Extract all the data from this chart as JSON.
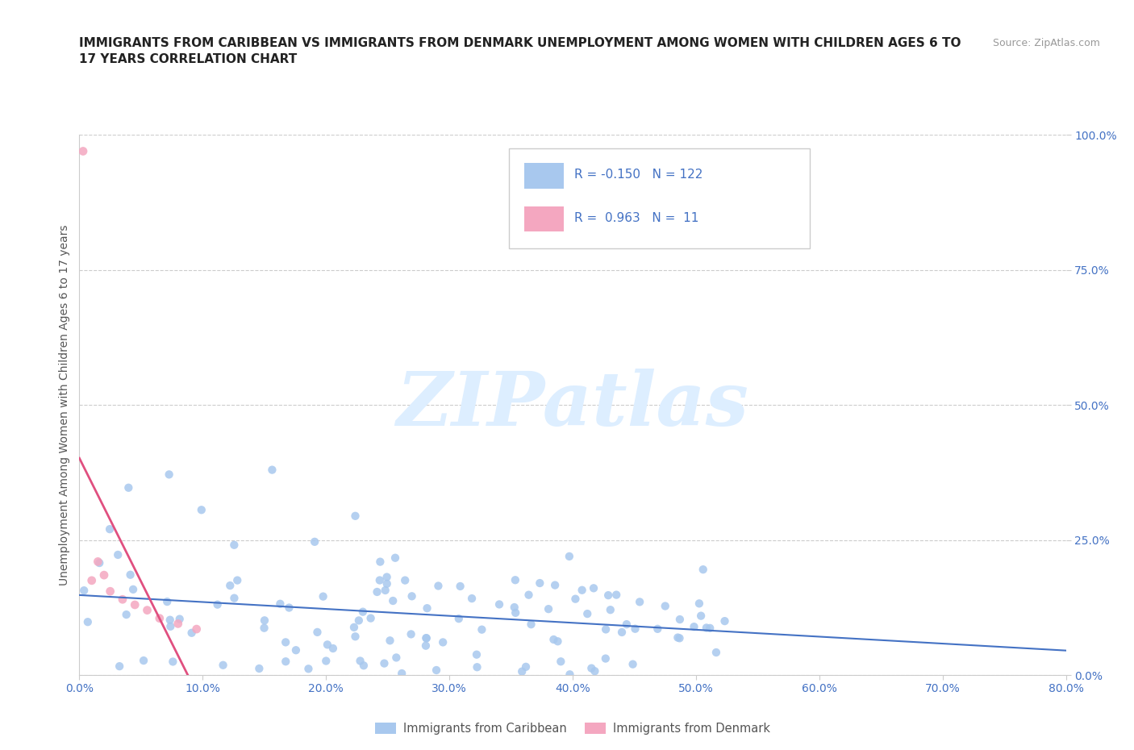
{
  "title_line1": "IMMIGRANTS FROM CARIBBEAN VS IMMIGRANTS FROM DENMARK UNEMPLOYMENT AMONG WOMEN WITH CHILDREN AGES 6 TO",
  "title_line2": "17 YEARS CORRELATION CHART",
  "source_text": "Source: ZipAtlas.com",
  "ylabel": "Unemployment Among Women with Children Ages 6 to 17 years",
  "xlim": [
    0.0,
    0.8
  ],
  "ylim": [
    0.0,
    1.0
  ],
  "xticks": [
    0.0,
    0.1,
    0.2,
    0.3,
    0.4,
    0.5,
    0.6,
    0.7,
    0.8
  ],
  "yticks": [
    0.0,
    0.25,
    0.5,
    0.75,
    1.0
  ],
  "xtick_labels": [
    "0.0%",
    "10.0%",
    "20.0%",
    "30.0%",
    "40.0%",
    "50.0%",
    "60.0%",
    "70.0%",
    "80.0%"
  ],
  "ytick_labels": [
    "0.0%",
    "25.0%",
    "50.0%",
    "75.0%",
    "100.0%"
  ],
  "caribbean_color": "#A8C8EE",
  "denmark_color": "#F4A7C0",
  "caribbean_line_color": "#4472C4",
  "denmark_line_color": "#E05080",
  "R_caribbean": -0.15,
  "N_caribbean": 122,
  "R_denmark": 0.963,
  "N_denmark": 11,
  "legend_label_caribbean": "Immigrants from Caribbean",
  "legend_label_denmark": "Immigrants from Denmark",
  "watermark_text": "ZIPatlas",
  "tick_color": "#4472C4",
  "title_color": "#222222",
  "source_color": "#999999",
  "ylabel_color": "#555555",
  "grid_color": "#CCCCCC"
}
